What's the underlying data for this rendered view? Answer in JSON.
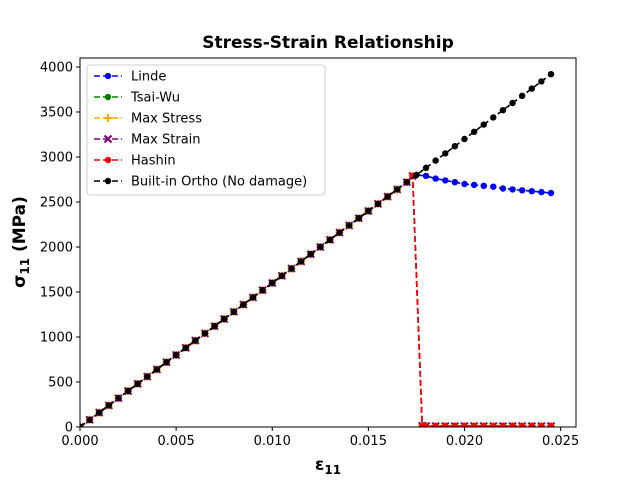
{
  "chart_data": {
    "type": "line",
    "title": "Stress-Strain Relationship",
    "xlabel": "ε",
    "xlabel_sub": "11",
    "ylabel": "σ",
    "ylabel_sub": "11",
    "ylabel_unit": " (MPa)",
    "xlim": [
      0,
      0.0258
    ],
    "ylim": [
      0,
      4100
    ],
    "x_ticks": [
      0.0,
      0.005,
      0.01,
      0.015,
      0.02,
      0.025
    ],
    "x_tick_labels": [
      "0.000",
      "0.005",
      "0.010",
      "0.015",
      "0.020",
      "0.025"
    ],
    "y_ticks": [
      0,
      500,
      1000,
      1500,
      2000,
      2500,
      3000,
      3500,
      4000
    ],
    "y_tick_labels": [
      "0",
      "500",
      "1000",
      "1500",
      "2000",
      "2500",
      "3000",
      "3500",
      "4000"
    ],
    "grid": false,
    "legend_position": "top-left",
    "series": [
      {
        "name": "Linde",
        "color": "#0000ff",
        "marker": "circle",
        "line_style": "dashed",
        "x": [
          0,
          0.0005,
          0.001,
          0.0015,
          0.002,
          0.0025,
          0.003,
          0.0035,
          0.004,
          0.0045,
          0.005,
          0.0055,
          0.006,
          0.0065,
          0.007,
          0.0075,
          0.008,
          0.0085,
          0.009,
          0.0095,
          0.01,
          0.0105,
          0.011,
          0.0115,
          0.012,
          0.0125,
          0.013,
          0.0135,
          0.014,
          0.0145,
          0.015,
          0.0155,
          0.016,
          0.0165,
          0.017,
          0.0175,
          0.018,
          0.0185,
          0.019,
          0.0195,
          0.02,
          0.0205,
          0.021,
          0.0215,
          0.022,
          0.0225,
          0.023,
          0.0235,
          0.024,
          0.0245
        ],
        "y": [
          0,
          80,
          160,
          240,
          320,
          400,
          480,
          560,
          640,
          720,
          800,
          880,
          960,
          1040,
          1120,
          1200,
          1280,
          1360,
          1440,
          1520,
          1600,
          1680,
          1760,
          1840,
          1920,
          2000,
          2080,
          2160,
          2240,
          2320,
          2400,
          2480,
          2560,
          2640,
          2720,
          2800,
          2790,
          2760,
          2740,
          2720,
          2700,
          2690,
          2680,
          2670,
          2650,
          2640,
          2630,
          2620,
          2610,
          2600
        ]
      },
      {
        "name": "Tsai-Wu",
        "color": "#008000",
        "marker": "circle",
        "line_style": "dashed",
        "x": [
          0,
          0.0005,
          0.001,
          0.0015,
          0.002,
          0.0025,
          0.003,
          0.0035,
          0.004,
          0.0045,
          0.005,
          0.0055,
          0.006,
          0.0065,
          0.007,
          0.0075,
          0.008,
          0.0085,
          0.009,
          0.0095,
          0.01,
          0.0105,
          0.011,
          0.0115,
          0.012,
          0.0125,
          0.013,
          0.0135,
          0.014,
          0.0145,
          0.015,
          0.0155,
          0.016,
          0.0165,
          0.017,
          0.0173,
          0.0178,
          0.018,
          0.0185,
          0.019,
          0.0195,
          0.02,
          0.0205,
          0.021,
          0.0215,
          0.022,
          0.0225,
          0.023,
          0.0235,
          0.024,
          0.0245
        ],
        "y": [
          0,
          80,
          160,
          240,
          320,
          400,
          480,
          560,
          640,
          720,
          800,
          880,
          960,
          1040,
          1120,
          1200,
          1280,
          1360,
          1440,
          1520,
          1600,
          1680,
          1760,
          1840,
          1920,
          2000,
          2080,
          2160,
          2240,
          2320,
          2400,
          2480,
          2560,
          2640,
          2720,
          2790,
          15,
          10,
          10,
          10,
          10,
          10,
          10,
          10,
          10,
          10,
          10,
          10,
          10,
          10,
          10
        ]
      },
      {
        "name": "Max Stress",
        "color": "#ffa500",
        "marker": "plus",
        "line_style": "dashed",
        "x": [
          0,
          0.0005,
          0.001,
          0.0015,
          0.002,
          0.0025,
          0.003,
          0.0035,
          0.004,
          0.0045,
          0.005,
          0.0055,
          0.006,
          0.0065,
          0.007,
          0.0075,
          0.008,
          0.0085,
          0.009,
          0.0095,
          0.01,
          0.0105,
          0.011,
          0.0115,
          0.012,
          0.0125,
          0.013,
          0.0135,
          0.014,
          0.0145,
          0.015,
          0.0155,
          0.016,
          0.0165,
          0.017,
          0.0173,
          0.0178,
          0.018,
          0.0185,
          0.019,
          0.0195,
          0.02,
          0.0205,
          0.021,
          0.0215,
          0.022,
          0.0225,
          0.023,
          0.0235,
          0.024,
          0.0245
        ],
        "y": [
          0,
          80,
          160,
          240,
          320,
          400,
          480,
          560,
          640,
          720,
          800,
          880,
          960,
          1040,
          1120,
          1200,
          1280,
          1360,
          1440,
          1520,
          1600,
          1680,
          1760,
          1840,
          1920,
          2000,
          2080,
          2160,
          2240,
          2320,
          2400,
          2480,
          2560,
          2640,
          2720,
          2790,
          15,
          10,
          10,
          10,
          10,
          10,
          10,
          10,
          10,
          10,
          10,
          10,
          10,
          10,
          10
        ]
      },
      {
        "name": "Max Strain",
        "color": "#800080",
        "marker": "x",
        "line_style": "dashed",
        "x": [
          0,
          0.0005,
          0.001,
          0.0015,
          0.002,
          0.0025,
          0.003,
          0.0035,
          0.004,
          0.0045,
          0.005,
          0.0055,
          0.006,
          0.0065,
          0.007,
          0.0075,
          0.008,
          0.0085,
          0.009,
          0.0095,
          0.01,
          0.0105,
          0.011,
          0.0115,
          0.012,
          0.0125,
          0.013,
          0.0135,
          0.014,
          0.0145,
          0.015,
          0.0155,
          0.016,
          0.0165,
          0.017,
          0.0173,
          0.0178,
          0.018,
          0.0185,
          0.019,
          0.0195,
          0.02,
          0.0205,
          0.021,
          0.0215,
          0.022,
          0.0225,
          0.023,
          0.0235,
          0.024,
          0.0245
        ],
        "y": [
          0,
          80,
          160,
          240,
          320,
          400,
          480,
          560,
          640,
          720,
          800,
          880,
          960,
          1040,
          1120,
          1200,
          1280,
          1360,
          1440,
          1520,
          1600,
          1680,
          1760,
          1840,
          1920,
          2000,
          2080,
          2160,
          2240,
          2320,
          2400,
          2480,
          2560,
          2640,
          2720,
          2790,
          15,
          10,
          10,
          10,
          10,
          10,
          10,
          10,
          10,
          10,
          10,
          10,
          10,
          10,
          10
        ]
      },
      {
        "name": "Hashin",
        "color": "#ff0000",
        "marker": "circle",
        "line_style": "dashed",
        "x": [
          0,
          0.0005,
          0.001,
          0.0015,
          0.002,
          0.0025,
          0.003,
          0.0035,
          0.004,
          0.0045,
          0.005,
          0.0055,
          0.006,
          0.0065,
          0.007,
          0.0075,
          0.008,
          0.0085,
          0.009,
          0.0095,
          0.01,
          0.0105,
          0.011,
          0.0115,
          0.012,
          0.0125,
          0.013,
          0.0135,
          0.014,
          0.0145,
          0.015,
          0.0155,
          0.016,
          0.0165,
          0.017,
          0.0173,
          0.0178,
          0.018,
          0.0185,
          0.019,
          0.0195,
          0.02,
          0.0205,
          0.021,
          0.0215,
          0.022,
          0.0225,
          0.023,
          0.0235,
          0.024,
          0.0245
        ],
        "y": [
          0,
          80,
          160,
          240,
          320,
          400,
          480,
          560,
          640,
          720,
          800,
          880,
          960,
          1040,
          1120,
          1200,
          1280,
          1360,
          1440,
          1520,
          1600,
          1680,
          1760,
          1840,
          1920,
          2000,
          2080,
          2160,
          2240,
          2320,
          2400,
          2480,
          2560,
          2640,
          2720,
          2790,
          15,
          10,
          10,
          10,
          10,
          10,
          10,
          10,
          10,
          10,
          10,
          10,
          10,
          10,
          10
        ]
      },
      {
        "name": "Built-in Ortho (No damage)",
        "color": "#000000",
        "marker": "circle",
        "line_style": "dashed",
        "x": [
          0,
          0.0005,
          0.001,
          0.0015,
          0.002,
          0.0025,
          0.003,
          0.0035,
          0.004,
          0.0045,
          0.005,
          0.0055,
          0.006,
          0.0065,
          0.007,
          0.0075,
          0.008,
          0.0085,
          0.009,
          0.0095,
          0.01,
          0.0105,
          0.011,
          0.0115,
          0.012,
          0.0125,
          0.013,
          0.0135,
          0.014,
          0.0145,
          0.015,
          0.0155,
          0.016,
          0.0165,
          0.017,
          0.0175,
          0.018,
          0.0185,
          0.019,
          0.0195,
          0.02,
          0.0205,
          0.021,
          0.0215,
          0.022,
          0.0225,
          0.023,
          0.0235,
          0.024,
          0.0245
        ],
        "y": [
          0,
          80,
          160,
          240,
          320,
          400,
          480,
          560,
          640,
          720,
          800,
          880,
          960,
          1040,
          1120,
          1200,
          1280,
          1360,
          1440,
          1520,
          1600,
          1680,
          1760,
          1840,
          1920,
          2000,
          2080,
          2160,
          2240,
          2320,
          2400,
          2480,
          2560,
          2640,
          2720,
          2800,
          2880,
          2960,
          3040,
          3120,
          3200,
          3280,
          3360,
          3440,
          3520,
          3600,
          3680,
          3760,
          3840,
          3920
        ]
      }
    ]
  }
}
